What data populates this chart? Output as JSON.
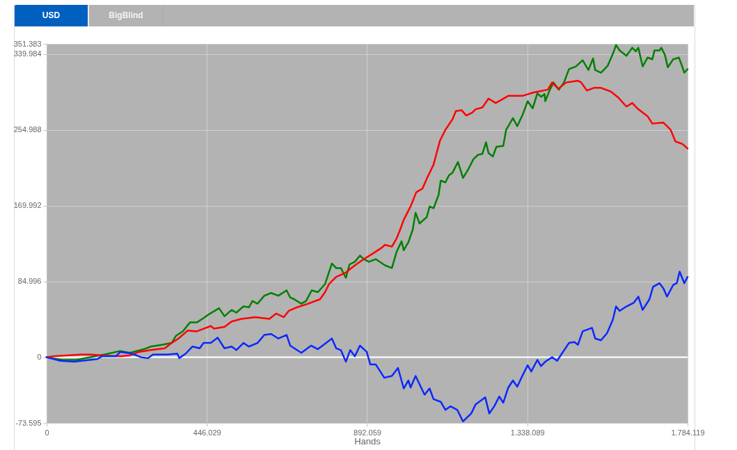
{
  "chart_data": {
    "type": "line",
    "xlabel": "Hands",
    "annotations": [
      "USD",
      "BigBlind"
    ],
    "xlim": [
      0,
      1784119
    ],
    "ylim": [
      -73595,
      351383
    ],
    "xticks": [
      0,
      {
        "value": 446029,
        "label": "446.029"
      },
      {
        "value": 892059,
        "label": "892.059"
      },
      {
        "value": 1338089,
        "label": "1.338.089"
      },
      {
        "value": 1784119,
        "label": "1.784.119"
      }
    ],
    "yticks": [
      {
        "value": -73595,
        "label": "-73.595"
      },
      0,
      {
        "value": 84996,
        "label": "84.996"
      },
      {
        "value": 169992,
        "label": "169.992"
      },
      {
        "value": 254988,
        "label": "254.988"
      },
      {
        "value": 339984,
        "label": "339.984"
      },
      {
        "value": 351383,
        "label": "351.383"
      }
    ],
    "grid": true,
    "ref_lines": [
      {
        "axis": "y",
        "value": 0,
        "color": "#ffffff"
      }
    ],
    "series": [
      {
        "color": "#008000",
        "x": [
          0,
          44000,
          82000,
          160000,
          205000,
          232000,
          271000,
          290000,
          321000,
          348000,
          360000,
          379000,
          399000,
          418000,
          437000,
          451000,
          480000,
          495000,
          515000,
          528000,
          548000,
          563000,
          573000,
          587000,
          606000,
          625000,
          645000,
          668000,
          678000,
          689000,
          709000,
          722000,
          738000,
          755000,
          775000,
          794000,
          806000,
          819000,
          833000,
          843000,
          858000,
          872000,
          883000,
          897000,
          916000,
          942000,
          961000,
          974000,
          988000,
          994000,
          1007000,
          1019000,
          1027000,
          1038000,
          1058000,
          1066000,
          1077000,
          1091000,
          1097000,
          1110000,
          1120000,
          1130000,
          1145000,
          1159000,
          1174000,
          1188000,
          1201000,
          1213000,
          1223000,
          1230000,
          1242000,
          1252000,
          1271000,
          1279000,
          1298000,
          1310000,
          1324000,
          1339000,
          1353000,
          1366000,
          1376000,
          1386000,
          1388000,
          1401000,
          1411000,
          1426000,
          1440000,
          1454000,
          1473000,
          1492000,
          1508000,
          1521000,
          1527000,
          1543000,
          1562000,
          1576000,
          1585000,
          1595000,
          1614000,
          1630000,
          1640000,
          1647000,
          1659000,
          1673000,
          1686000,
          1692000,
          1706000,
          1711000,
          1721000,
          1729000,
          1744000,
          1760000,
          1770000,
          1775000,
          1784119
        ],
        "values": [
          0,
          -3000,
          -3000,
          3000,
          7000,
          5000,
          9000,
          12000,
          14000,
          16000,
          24000,
          29000,
          39000,
          39000,
          44000,
          48000,
          55000,
          46000,
          53000,
          50000,
          57000,
          56000,
          63000,
          60000,
          69000,
          72000,
          69000,
          75000,
          67000,
          65000,
          60000,
          63000,
          75000,
          73000,
          82000,
          105000,
          100000,
          100000,
          89000,
          104000,
          107000,
          114000,
          110000,
          107000,
          110000,
          103000,
          100000,
          118000,
          130000,
          120000,
          129000,
          143000,
          162000,
          150000,
          157000,
          169000,
          167000,
          182000,
          198000,
          196000,
          204000,
          207000,
          219000,
          201000,
          211000,
          222000,
          227000,
          228000,
          241000,
          229000,
          225000,
          236000,
          237000,
          255000,
          268000,
          259000,
          271000,
          287000,
          279000,
          296000,
          292000,
          295000,
          287000,
          300000,
          308000,
          300000,
          308000,
          323000,
          326000,
          333000,
          322000,
          335000,
          322000,
          319000,
          327000,
          340000,
          350000,
          344000,
          338000,
          347000,
          343000,
          347000,
          326000,
          336000,
          334000,
          344000,
          344000,
          347000,
          339000,
          325000,
          334000,
          336000,
          325000,
          319000,
          323000
        ]
      },
      {
        "color": "#ff0000",
        "x": [
          0,
          18000,
          96000,
          121000,
          154000,
          205000,
          232000,
          257000,
          290000,
          329000,
          348000,
          367000,
          393000,
          418000,
          437000,
          457000,
          466000,
          495000,
          515000,
          542000,
          581000,
          620000,
          639000,
          660000,
          674000,
          697000,
          728000,
          761000,
          775000,
          786000,
          806000,
          833000,
          858000,
          883000,
          907000,
          930000,
          942000,
          961000,
          974000,
          984000,
          994000,
          1013000,
          1029000,
          1046000,
          1058000,
          1077000,
          1095000,
          1110000,
          1130000,
          1139000,
          1155000,
          1168000,
          1184000,
          1194000,
          1213000,
          1230000,
          1250000,
          1285000,
          1324000,
          1357000,
          1395000,
          1407000,
          1424000,
          1446000,
          1479000,
          1488000,
          1504000,
          1523000,
          1543000,
          1570000,
          1589000,
          1614000,
          1630000,
          1647000,
          1673000,
          1686000,
          1717000,
          1737000,
          1750000,
          1770000,
          1784119
        ],
        "values": [
          0,
          1000,
          3000,
          3000,
          2000,
          1000,
          2000,
          6000,
          8000,
          10000,
          16000,
          21000,
          30000,
          29000,
          32000,
          35000,
          32000,
          34000,
          40000,
          43000,
          45000,
          43000,
          49000,
          45000,
          52000,
          56000,
          60000,
          65000,
          73000,
          82000,
          90000,
          95000,
          103000,
          110000,
          116000,
          122000,
          126000,
          124000,
          133000,
          143000,
          154000,
          169000,
          185000,
          189000,
          200000,
          216000,
          243000,
          255000,
          267000,
          276000,
          277000,
          271000,
          274000,
          278000,
          280000,
          290000,
          285000,
          293000,
          293000,
          297000,
          300000,
          308000,
          301000,
          308000,
          310000,
          308000,
          299000,
          302000,
          302000,
          298000,
          292000,
          281000,
          285000,
          278000,
          270000,
          262000,
          263000,
          255000,
          242000,
          239000,
          234000
        ]
      },
      {
        "color": "#0a28ff",
        "x": [
          0,
          38000,
          77000,
          141000,
          154000,
          193000,
          205000,
          238000,
          263000,
          282000,
          296000,
          335000,
          364000,
          369000,
          387000,
          406000,
          426000,
          437000,
          457000,
          476000,
          495000,
          515000,
          528000,
          548000,
          563000,
          587000,
          606000,
          625000,
          645000,
          668000,
          678000,
          709000,
          736000,
          755000,
          771000,
          794000,
          806000,
          819000,
          833000,
          845000,
          858000,
          872000,
          891000,
          901000,
          916000,
          940000,
          961000,
          978000,
          994000,
          1007000,
          1013000,
          1027000,
          1052000,
          1066000,
          1077000,
          1097000,
          1110000,
          1124000,
          1143000,
          1159000,
          1182000,
          1194000,
          1221000,
          1232000,
          1246000,
          1260000,
          1271000,
          1285000,
          1298000,
          1310000,
          1324000,
          1339000,
          1349000,
          1366000,
          1376000,
          1388000,
          1407000,
          1421000,
          1434000,
          1454000,
          1469000,
          1479000,
          1492000,
          1518000,
          1527000,
          1543000,
          1560000,
          1576000,
          1585000,
          1595000,
          1614000,
          1634000,
          1647000,
          1659000,
          1678000,
          1688000,
          1706000,
          1717000,
          1727000,
          1744000,
          1754000,
          1762000,
          1775000,
          1784119
        ],
        "values": [
          0,
          -4000,
          -5000,
          -2000,
          1000,
          1000,
          6000,
          4000,
          0,
          -1000,
          3000,
          3000,
          4000,
          -1000,
          4000,
          12000,
          10000,
          16000,
          16000,
          22000,
          10000,
          12000,
          8000,
          16000,
          12000,
          16000,
          25000,
          26000,
          21000,
          25000,
          13000,
          5000,
          13000,
          9000,
          14000,
          21000,
          10000,
          8000,
          -5000,
          8000,
          1000,
          13000,
          6000,
          -8000,
          -8000,
          -23000,
          -21000,
          -12000,
          -35000,
          -26000,
          -34000,
          -21000,
          -42000,
          -35000,
          -47000,
          -50000,
          -59000,
          -55000,
          -59000,
          -72000,
          -63000,
          -53000,
          -45000,
          -63000,
          -55000,
          -44000,
          -51000,
          -34000,
          -26000,
          -33000,
          -21000,
          -9000,
          -16000,
          -3000,
          -10000,
          -5000,
          0,
          -4000,
          4000,
          16000,
          17000,
          14000,
          29000,
          33000,
          21000,
          19000,
          27000,
          42000,
          57000,
          52000,
          57000,
          61000,
          68000,
          53000,
          65000,
          79000,
          83000,
          77000,
          68000,
          81000,
          83000,
          96000,
          83000,
          90000
        ]
      }
    ]
  }
}
